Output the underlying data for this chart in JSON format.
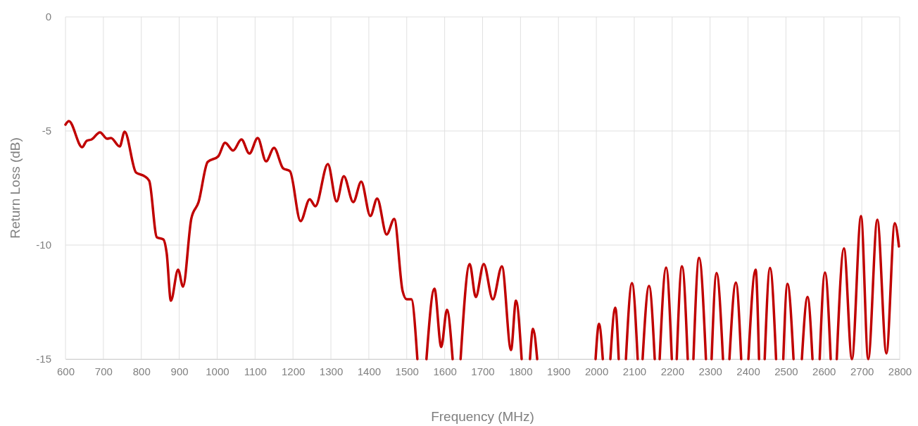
{
  "chart_data": {
    "type": "line",
    "xlabel": "Frequency (MHz)",
    "ylabel": "Return Loss (dB)",
    "xlim": [
      600,
      2800
    ],
    "xticks": [
      600,
      700,
      800,
      900,
      1000,
      1100,
      1200,
      1300,
      1400,
      1500,
      1600,
      1700,
      1800,
      1900,
      2000,
      2100,
      2200,
      2300,
      2400,
      2500,
      2600,
      2700,
      2800
    ],
    "ylim": [
      -15,
      0
    ],
    "yticks": [
      -15,
      -10,
      -5,
      0
    ],
    "grid": true,
    "marker": "none",
    "line_style": "solid",
    "series": [
      {
        "color": "#c00000",
        "x": [
          600,
          609,
          644,
          656,
          669,
          691,
          710,
          720,
          743,
          756,
          786,
          808,
          821,
          841,
          858,
          867,
          878,
          897,
          910,
          932,
          951,
          975,
          1003,
          1021,
          1042,
          1064,
          1085,
          1107,
          1129,
          1150,
          1174,
          1192,
          1220,
          1244,
          1259,
          1292,
          1315,
          1334,
          1359,
          1380,
          1404,
          1422,
          1447,
          1467,
          1489,
          1500,
          1512,
          1528,
          1540,
          1552,
          1573,
          1591,
          1606,
          1621,
          1632,
          1642,
          1666,
          1682,
          1703,
          1727,
          1751,
          1775,
          1788,
          1803,
          1814,
          1825,
          1833,
          1844,
          1920,
          1998,
          2007,
          2017,
          2027,
          2037,
          2050,
          2059,
          2068,
          2078,
          2094,
          2109,
          2115,
          2122,
          2139,
          2154,
          2160,
          2167,
          2184,
          2199,
          2205,
          2212,
          2226,
          2241,
          2248,
          2256,
          2271,
          2289,
          2296,
          2304,
          2317,
          2334,
          2342,
          2351,
          2368,
          2382,
          2391,
          2401,
          2420,
          2429,
          2436,
          2444,
          2458,
          2474,
          2483,
          2493,
          2504,
          2520,
          2531,
          2542,
          2557,
          2570,
          2580,
          2589,
          2603,
          2618,
          2626,
          2634,
          2653,
          2674,
          2698,
          2717,
          2741,
          2765,
          2787,
          2798
        ],
        "values": [
          -4.72,
          -4.57,
          -5.71,
          -5.43,
          -5.37,
          -5.06,
          -5.34,
          -5.31,
          -5.68,
          -5.03,
          -6.82,
          -6.98,
          -7.19,
          -9.66,
          -9.75,
          -10.37,
          -12.44,
          -11.08,
          -11.82,
          -8.83,
          -8.12,
          -6.36,
          -6.11,
          -5.52,
          -5.86,
          -5.37,
          -5.99,
          -5.31,
          -6.33,
          -5.74,
          -6.64,
          -6.76,
          -8.95,
          -7.99,
          -8.3,
          -6.45,
          -8.09,
          -6.98,
          -8.12,
          -7.22,
          -8.73,
          -7.96,
          -9.54,
          -8.86,
          -12.01,
          -12.38,
          -12.38,
          -15,
          null,
          -15,
          -11.91,
          -14.47,
          -12.84,
          -15,
          null,
          -15,
          -10.83,
          -12.28,
          -10.83,
          -12.38,
          -10.93,
          -14.6,
          -12.44,
          -15,
          null,
          -15,
          -13.67,
          -15,
          null,
          -15,
          -13.46,
          -15,
          null,
          -15,
          -12.75,
          -15,
          null,
          -15,
          -11.67,
          -15,
          null,
          -15,
          -11.79,
          -15,
          null,
          -15,
          -10.99,
          -15,
          null,
          -15,
          -10.93,
          -15,
          null,
          -15,
          -10.56,
          -15,
          null,
          -15,
          -11.23,
          -15,
          null,
          -15,
          -11.64,
          -15,
          null,
          -15,
          -11.08,
          -15,
          null,
          -15,
          -11.0,
          -15,
          null,
          -15,
          -11.7,
          -15,
          null,
          -15,
          -12.28,
          -15,
          null,
          -15,
          -11.2,
          -15,
          null,
          -15,
          -10.15,
          -15,
          -8.73,
          -15,
          -8.89,
          -14.75,
          -9.04,
          -10.06
        ]
      }
    ]
  }
}
